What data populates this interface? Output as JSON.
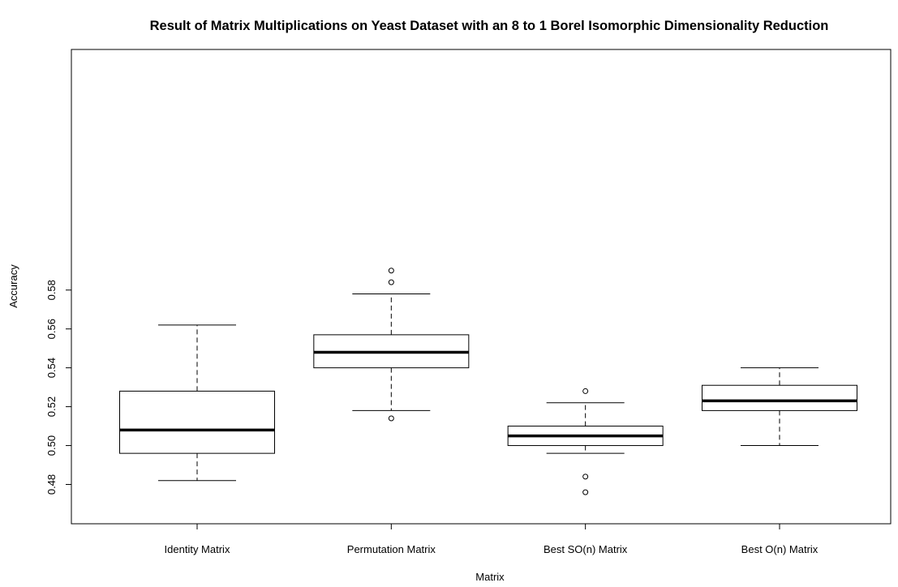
{
  "chart_data": {
    "type": "boxplot",
    "title": "Result of Matrix Multiplications on Yeast Dataset with an 8 to 1 Borel Isomorphic Dimensionality Reduction",
    "xlabel": "Matrix",
    "ylabel": "Accuracy",
    "ylim": [
      0.47,
      0.592
    ],
    "y_ticks": [
      0.48,
      0.5,
      0.52,
      0.54,
      0.56,
      0.58
    ],
    "y_tick_labels": [
      "0.48",
      "0.50",
      "0.52",
      "0.54",
      "0.56",
      "0.58"
    ],
    "grid": false,
    "legend": "none",
    "categories": [
      "Identity Matrix",
      "Permutation Matrix",
      "Best SO(n) Matrix",
      "Best O(n) Matrix"
    ],
    "boxes": [
      {
        "category": "Identity Matrix",
        "whisker_low": 0.482,
        "q1": 0.496,
        "median": 0.508,
        "q3": 0.528,
        "whisker_high": 0.562,
        "outliers": []
      },
      {
        "category": "Permutation Matrix",
        "whisker_low": 0.518,
        "q1": 0.54,
        "median": 0.548,
        "q3": 0.557,
        "whisker_high": 0.578,
        "outliers": [
          0.514,
          0.584,
          0.59
        ]
      },
      {
        "category": "Best SO(n) Matrix",
        "whisker_low": 0.496,
        "q1": 0.5,
        "median": 0.505,
        "q3": 0.51,
        "whisker_high": 0.522,
        "outliers": [
          0.476,
          0.484,
          0.528
        ]
      },
      {
        "category": "Best O(n) Matrix",
        "whisker_low": 0.5,
        "q1": 0.518,
        "median": 0.523,
        "q3": 0.531,
        "whisker_high": 0.54,
        "outliers": []
      }
    ],
    "colors": {
      "box_fill": "#ffffff",
      "stroke": "#000000",
      "median": "#000000",
      "background": "#ffffff"
    }
  }
}
